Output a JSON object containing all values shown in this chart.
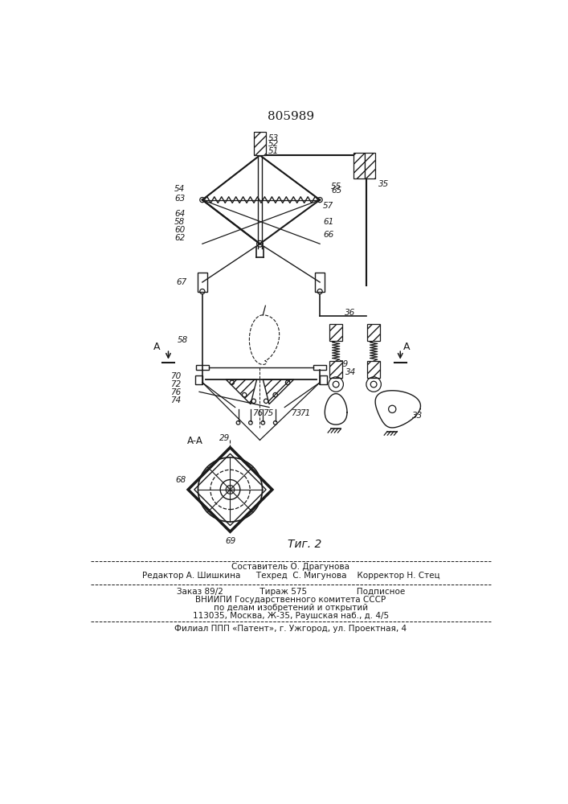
{
  "title": "805989",
  "fig_label": "Τиг. 2",
  "background_color": "#ffffff",
  "line_color": "#1a1a1a",
  "footer_lines": [
    "Составитель О. Драгунова",
    "Редактор А. Шишкина      Техред  С. Мигунова    Корректор Н. Стец",
    "Заказ 89/2              Тираж 575                   Подписное",
    "ВНИИПИ Государственного комитета СССР",
    "по делам изобретений и открытий",
    "113035, Москва, Ж-35, Раушская наб., д. 4/5",
    "Филиал ППП «Патент», г. Ужгород, ул. Проектная, 4"
  ]
}
